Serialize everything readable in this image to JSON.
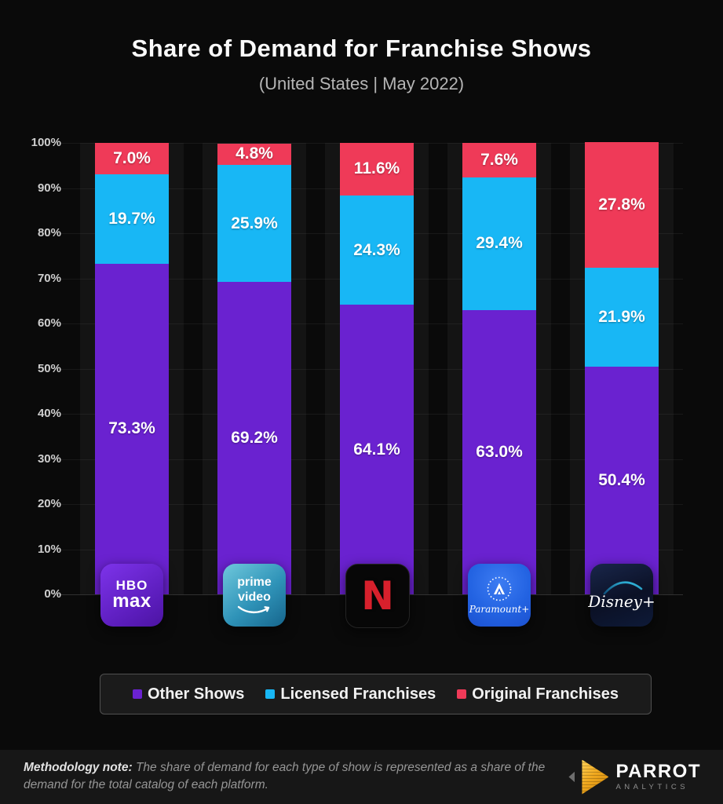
{
  "title": "Share of Demand for Franchise Shows",
  "subtitle": "(United States | May 2022)",
  "chart_data": {
    "type": "bar",
    "stacked": true,
    "categories": [
      "HBO Max",
      "Prime Video",
      "Netflix",
      "Paramount+",
      "Disney+"
    ],
    "series": [
      {
        "name": "Other Shows",
        "color": "#6a22d0",
        "values": [
          73.3,
          69.2,
          64.1,
          63.0,
          50.4
        ]
      },
      {
        "name": "Licensed Franchises",
        "color": "#18b7f5",
        "values": [
          19.7,
          25.9,
          24.3,
          29.4,
          21.9
        ]
      },
      {
        "name": "Original Franchises",
        "color": "#ef3a58",
        "values": [
          7.0,
          4.8,
          11.6,
          7.6,
          27.8
        ]
      }
    ],
    "ylim": [
      0,
      100
    ],
    "y_tick_labels": [
      "100%",
      "90%",
      "80%",
      "70%",
      "60%",
      "50%",
      "40%",
      "30%",
      "20%",
      "10%",
      "0%"
    ],
    "grid": true,
    "legend_position": "bottom",
    "value_label_format": "0.0%"
  },
  "platforms": [
    {
      "name": "HBO Max",
      "logo_line1": "HBO",
      "logo_line2": "max"
    },
    {
      "name": "Prime Video",
      "logo_line1": "prime",
      "logo_line2": "video"
    },
    {
      "name": "Netflix",
      "logo_letter": "N"
    },
    {
      "name": "Paramount+",
      "logo_text": "Paramount+"
    },
    {
      "name": "Disney+",
      "logo_text": "Disney+"
    }
  ],
  "footer": {
    "note_label": "Methodology note:",
    "note_text": "The share of demand for each type of show is represented as a share of the demand for the total catalog of each platform.",
    "brand_name": "PARROT",
    "brand_subtitle": "ANALYTICS"
  }
}
